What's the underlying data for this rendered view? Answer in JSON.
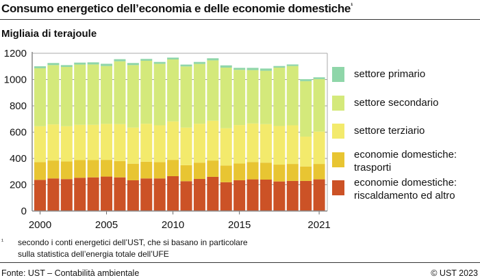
{
  "title": "Consumo energetico dell’economia e delle economie domestiche",
  "title_footnote_mark": "¹",
  "subtitle": "Migliaia di terajoule",
  "footnote": {
    "mark": "¹",
    "line1": "secondo i conti energetici dell’UST, che si basano in particolare",
    "line2": "sulla statistica dell’energia totale dell’UFE"
  },
  "source": "Fonte: UST – Contabilità ambientale",
  "copyright": "© UST 2023",
  "chart_data": {
    "type": "bar",
    "stacked": true,
    "ylabel": "Migliaia di terajoule",
    "ylim": [
      0,
      1200
    ],
    "yticks": [
      0,
      200,
      400,
      600,
      800,
      1000,
      1200
    ],
    "xtick_labels": [
      "2000",
      "2005",
      "2010",
      "2015",
      "2021"
    ],
    "grid": true,
    "legend_position": "right",
    "categories": [
      2000,
      2001,
      2002,
      2003,
      2004,
      2005,
      2006,
      2007,
      2008,
      2009,
      2010,
      2011,
      2012,
      2013,
      2014,
      2015,
      2016,
      2017,
      2018,
      2019,
      2020,
      2021
    ],
    "series": [
      {
        "name": "economie domestiche: riscaldamento ed altro",
        "color": "#cc5226",
        "values": [
          237,
          248,
          243,
          253,
          256,
          262,
          256,
          234,
          248,
          248,
          265,
          227,
          244,
          260,
          219,
          234,
          241,
          239,
          225,
          229,
          229,
          241
        ]
      },
      {
        "name": "economie domestiche: trasporti",
        "color": "#e8c532",
        "values": [
          135,
          136,
          134,
          134,
          131,
          127,
          124,
          126,
          127,
          124,
          124,
          122,
          124,
          124,
          127,
          127,
          132,
          129,
          128,
          129,
          110,
          117
        ]
      },
      {
        "name": "settore terziario",
        "color": "#f3ea6c",
        "values": [
          273,
          275,
          268,
          269,
          269,
          274,
          281,
          275,
          289,
          280,
          293,
          286,
          296,
          303,
          284,
          293,
          293,
          293,
          294,
          294,
          227,
          246
        ]
      },
      {
        "name": "settore secondario",
        "color": "#d4e97b",
        "values": [
          441,
          451,
          451,
          458,
          459,
          440,
          478,
          475,
          479,
          468,
          471,
          465,
          455,
          459,
          461,
          420,
          406,
          406,
          444,
          451,
          422,
          399
        ]
      },
      {
        "name": "settore primario",
        "color": "#8fd6a9",
        "values": [
          15,
          16,
          14,
          15,
          16,
          17,
          16,
          16,
          14,
          14,
          14,
          14,
          15,
          16,
          17,
          15,
          17,
          17,
          12,
          12,
          15,
          14
        ]
      }
    ]
  },
  "legend": [
    {
      "line1": "settore primario",
      "line2": ""
    },
    {
      "line1": "settore secondario",
      "line2": ""
    },
    {
      "line1": "settore terziario",
      "line2": ""
    },
    {
      "line1": "economie domestiche:",
      "line2": "trasporti"
    },
    {
      "line1": "economie domestiche:",
      "line2": "riscaldamento ed altro"
    }
  ]
}
